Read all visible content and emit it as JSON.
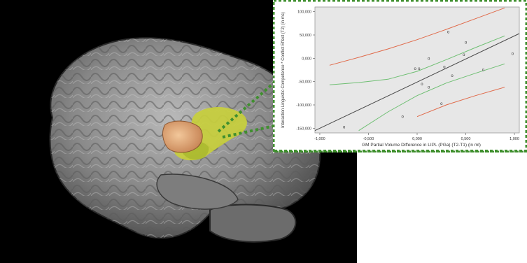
{
  "chart_data": {
    "type": "scatter",
    "title": "",
    "xlabel": "GM Partial Volume Difference in LIPL (PGa) (T2-T1) (in ml)",
    "ylabel": "Interaction Linguistic Competence * Conflict Effect (T2) (in ms)",
    "xlim": [
      -1.05,
      1.05
    ],
    "ylim": [
      -160000,
      110000
    ],
    "x_ticks": [
      -1.0,
      -0.5,
      0.0,
      0.5,
      1.0
    ],
    "x_tick_labels": [
      "-1,000",
      "-0,500",
      "0,000",
      "0,500",
      "1,000"
    ],
    "y_ticks": [
      100000,
      50000,
      0,
      -50000,
      -100000,
      -150000
    ],
    "y_tick_labels": [
      "100,000",
      "50,000",
      "0,000",
      "-50,000",
      "-100,000",
      "-150,000"
    ],
    "points": [
      {
        "x": -0.75,
        "y": -147000
      },
      {
        "x": -0.15,
        "y": -125000
      },
      {
        "x": -0.02,
        "y": -22000
      },
      {
        "x": 0.02,
        "y": -22000
      },
      {
        "x": 0.05,
        "y": -55000
      },
      {
        "x": 0.12,
        "y": 0
      },
      {
        "x": 0.12,
        "y": -62000
      },
      {
        "x": 0.25,
        "y": -97000
      },
      {
        "x": 0.28,
        "y": -18000
      },
      {
        "x": 0.32,
        "y": 57000
      },
      {
        "x": 0.36,
        "y": -37000
      },
      {
        "x": 0.48,
        "y": 8000
      },
      {
        "x": 0.5,
        "y": 34000
      },
      {
        "x": 0.68,
        "y": -24000
      },
      {
        "x": 0.98,
        "y": 10000
      }
    ],
    "fit_line": {
      "x": [
        -1.05,
        1.05
      ],
      "y": [
        -155000,
        53000
      ]
    },
    "confidence_band": {
      "x": [
        -0.9,
        -0.6,
        -0.3,
        0.0,
        0.3,
        0.6,
        0.9
      ],
      "upper": [
        -57000,
        -52000,
        -45000,
        -28000,
        -3000,
        23000,
        48000
      ],
      "lower": [
        -195000,
        -155000,
        -115000,
        -80000,
        -53000,
        -32000,
        -12000
      ]
    },
    "prediction_band": {
      "x": [
        -0.9,
        -0.6,
        -0.3,
        0.0,
        0.3,
        0.6,
        0.9
      ],
      "upper": [
        -15000,
        2000,
        20000,
        40000,
        62000,
        85000,
        108000
      ],
      "lower": [
        -235000,
        -200000,
        -165000,
        -125000,
        -100000,
        -80000,
        -62000
      ]
    },
    "grid": false,
    "colors": {
      "points": "#7ab648",
      "fit_line": "#4a4a4a",
      "confidence_band": "#6fbf73",
      "prediction_band": "#e06a4a",
      "plot_background": "#e7e7e7",
      "connector": "#3f8f2e"
    }
  }
}
